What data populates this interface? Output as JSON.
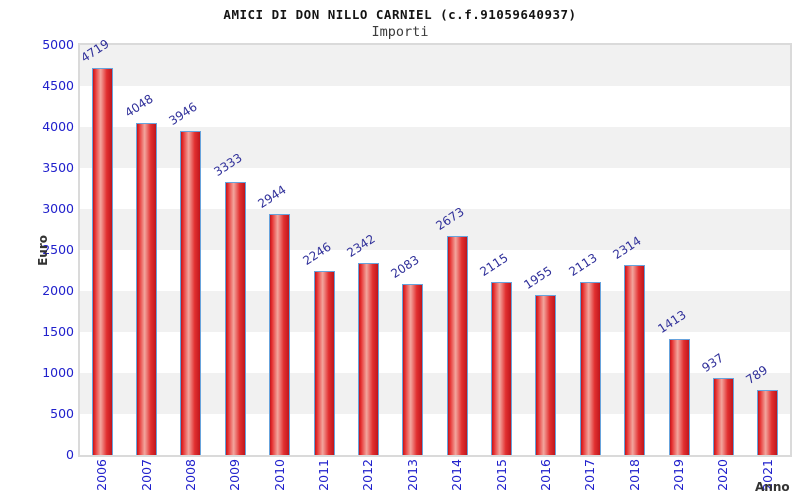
{
  "header": {
    "title": "AMICI DI DON NILLO CARNIEL (c.f.91059640937)",
    "subtitle": "Importi"
  },
  "chart_data": {
    "type": "bar",
    "title": "AMICI DI DON NILLO CARNIEL (c.f.91059640937)",
    "subtitle": "Importi",
    "xlabel": "Anno",
    "ylabel": "Euro",
    "categories": [
      "2006",
      "2007",
      "2008",
      "2009",
      "2010",
      "2011",
      "2012",
      "2013",
      "2014",
      "2015",
      "2016",
      "2017",
      "2018",
      "2019",
      "2020",
      "2021"
    ],
    "values": [
      4719,
      4048,
      3946,
      3333,
      2944,
      2246,
      2342,
      2083,
      2673,
      2115,
      1955,
      2113,
      2314,
      1413,
      937,
      789
    ],
    "ylim": [
      0,
      5000
    ],
    "ytick_step": 500,
    "yticks": [
      0,
      500,
      1000,
      1500,
      2000,
      2500,
      3000,
      3500,
      4000,
      4500,
      5000
    ],
    "value_labels_shown": true,
    "legend": "none",
    "grid": "alternating horizontal bands every 500",
    "colors": {
      "bar_edge_dark": "#bf161d",
      "bar_mid": "#e62e2e",
      "bar_highlight": "#f3a69e",
      "bar_border": "#67a3dc",
      "tick_label": "#2121cc",
      "value_label": "#30309a",
      "band_gray": "#f1f1f1",
      "band_white": "#ffffff",
      "axis_title": "#333333",
      "plot_border": "#dadada",
      "title": "#141414"
    }
  }
}
